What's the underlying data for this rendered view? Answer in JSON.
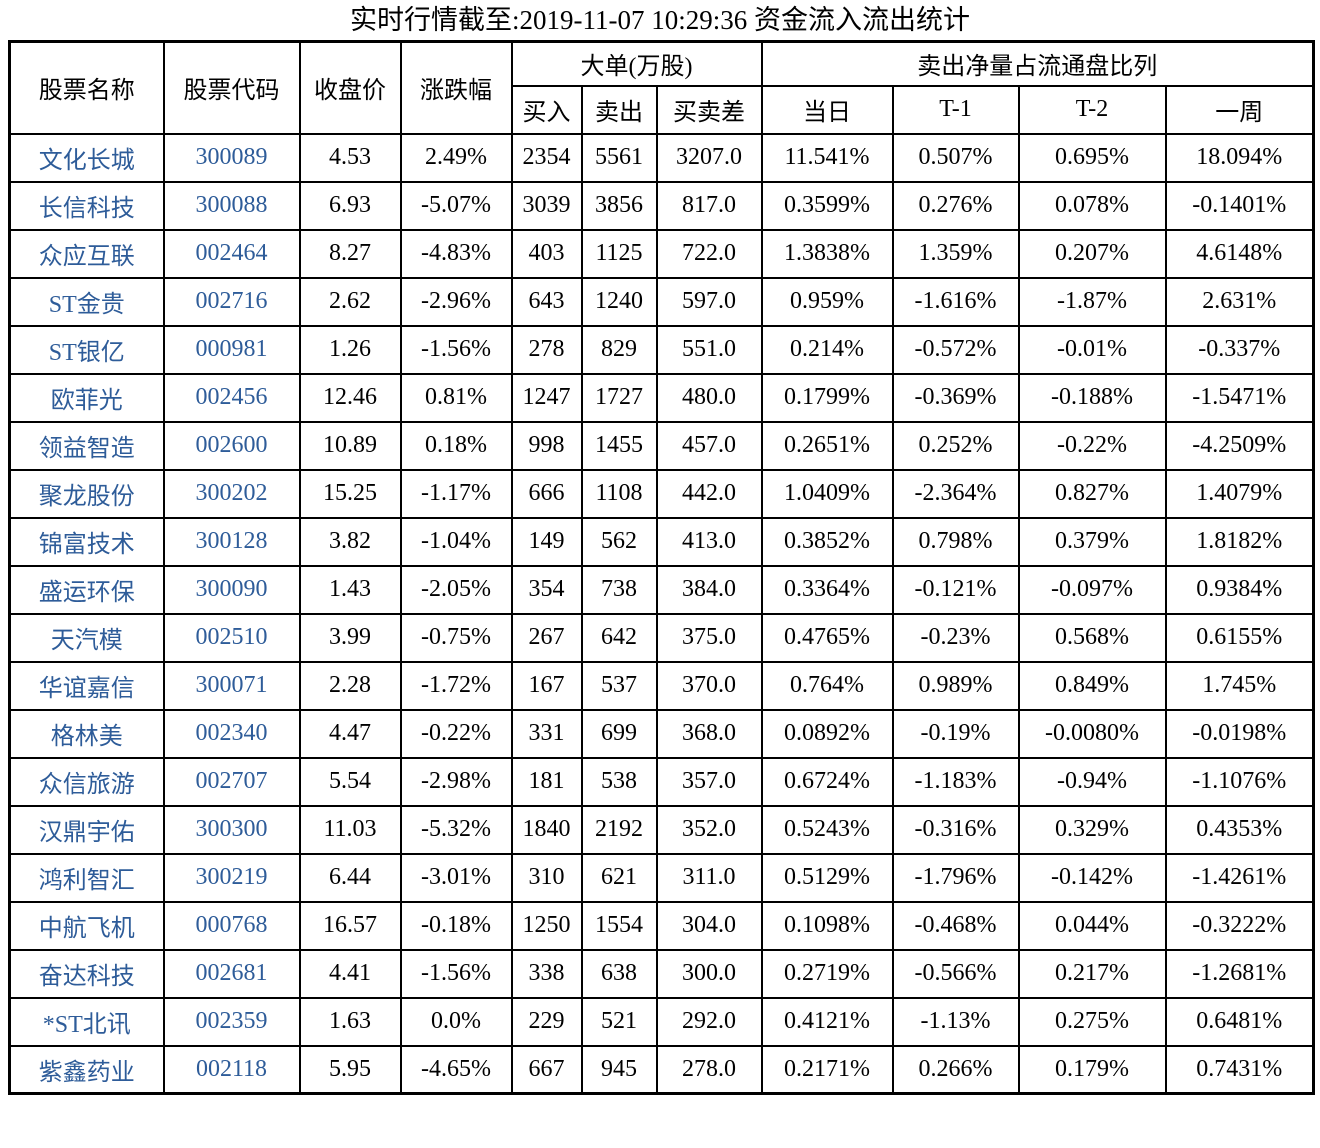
{
  "title": "实时行情截至:2019-11-07 10:29:36 资金流入流出统计",
  "colors": {
    "stock_text": "#2e5c99",
    "body_text": "#000000",
    "border": "#000000",
    "background": "#ffffff"
  },
  "table": {
    "header": {
      "stock_name": "股票名称",
      "stock_code": "股票代码",
      "close_price": "收盘价",
      "change_pct": "涨跌幅",
      "large_orders_group": "大单(万股)",
      "buy": "买入",
      "sell": "卖出",
      "buy_sell_diff": "买卖差",
      "net_sell_ratio_group": "卖出净量占流通盘比列",
      "day": "当日",
      "t1": "T-1",
      "t2": "T-2",
      "week": "一周"
    }
  },
  "chart_data": {
    "type": "table",
    "title": "实时行情截至:2019-11-07 10:29:36 资金流入流出统计",
    "column_groups": [
      {
        "label": "大单(万股)",
        "columns": [
          "买入",
          "卖出",
          "买卖差"
        ]
      },
      {
        "label": "卖出净量占流通盘比列",
        "columns": [
          "当日",
          "T-1",
          "T-2",
          "一周"
        ]
      }
    ],
    "columns": [
      "股票名称",
      "股票代码",
      "收盘价",
      "涨跌幅",
      "买入",
      "卖出",
      "买卖差",
      "当日",
      "T-1",
      "T-2",
      "一周"
    ],
    "rows": [
      [
        "文化长城",
        "300089",
        "4.53",
        "2.49%",
        "2354",
        "5561",
        "3207.0",
        "11.541%",
        "0.507%",
        "0.695%",
        "18.094%"
      ],
      [
        "长信科技",
        "300088",
        "6.93",
        "-5.07%",
        "3039",
        "3856",
        "817.0",
        "0.3599%",
        "0.276%",
        "0.078%",
        "-0.1401%"
      ],
      [
        "众应互联",
        "002464",
        "8.27",
        "-4.83%",
        "403",
        "1125",
        "722.0",
        "1.3838%",
        "1.359%",
        "0.207%",
        "4.6148%"
      ],
      [
        "ST金贵",
        "002716",
        "2.62",
        "-2.96%",
        "643",
        "1240",
        "597.0",
        "0.959%",
        "-1.616%",
        "-1.87%",
        "2.631%"
      ],
      [
        "ST银亿",
        "000981",
        "1.26",
        "-1.56%",
        "278",
        "829",
        "551.0",
        "0.214%",
        "-0.572%",
        "-0.01%",
        "-0.337%"
      ],
      [
        "欧菲光",
        "002456",
        "12.46",
        "0.81%",
        "1247",
        "1727",
        "480.0",
        "0.1799%",
        "-0.369%",
        "-0.188%",
        "-1.5471%"
      ],
      [
        "领益智造",
        "002600",
        "10.89",
        "0.18%",
        "998",
        "1455",
        "457.0",
        "0.2651%",
        "0.252%",
        "-0.22%",
        "-4.2509%"
      ],
      [
        "聚龙股份",
        "300202",
        "15.25",
        "-1.17%",
        "666",
        "1108",
        "442.0",
        "1.0409%",
        "-2.364%",
        "0.827%",
        "1.4079%"
      ],
      [
        "锦富技术",
        "300128",
        "3.82",
        "-1.04%",
        "149",
        "562",
        "413.0",
        "0.3852%",
        "0.798%",
        "0.379%",
        "1.8182%"
      ],
      [
        "盛运环保",
        "300090",
        "1.43",
        "-2.05%",
        "354",
        "738",
        "384.0",
        "0.3364%",
        "-0.121%",
        "-0.097%",
        "0.9384%"
      ],
      [
        "天汽模",
        "002510",
        "3.99",
        "-0.75%",
        "267",
        "642",
        "375.0",
        "0.4765%",
        "-0.23%",
        "0.568%",
        "0.6155%"
      ],
      [
        "华谊嘉信",
        "300071",
        "2.28",
        "-1.72%",
        "167",
        "537",
        "370.0",
        "0.764%",
        "0.989%",
        "0.849%",
        "1.745%"
      ],
      [
        "格林美",
        "002340",
        "4.47",
        "-0.22%",
        "331",
        "699",
        "368.0",
        "0.0892%",
        "-0.19%",
        "-0.0080%",
        "-0.0198%"
      ],
      [
        "众信旅游",
        "002707",
        "5.54",
        "-2.98%",
        "181",
        "538",
        "357.0",
        "0.6724%",
        "-1.183%",
        "-0.94%",
        "-1.1076%"
      ],
      [
        "汉鼎宇佑",
        "300300",
        "11.03",
        "-5.32%",
        "1840",
        "2192",
        "352.0",
        "0.5243%",
        "-0.316%",
        "0.329%",
        "0.4353%"
      ],
      [
        "鸿利智汇",
        "300219",
        "6.44",
        "-3.01%",
        "310",
        "621",
        "311.0",
        "0.5129%",
        "-1.796%",
        "-0.142%",
        "-1.4261%"
      ],
      [
        "中航飞机",
        "000768",
        "16.57",
        "-0.18%",
        "1250",
        "1554",
        "304.0",
        "0.1098%",
        "-0.468%",
        "0.044%",
        "-0.3222%"
      ],
      [
        "奋达科技",
        "002681",
        "4.41",
        "-1.56%",
        "338",
        "638",
        "300.0",
        "0.2719%",
        "-0.566%",
        "0.217%",
        "-1.2681%"
      ],
      [
        "*ST北讯",
        "002359",
        "1.63",
        "0.0%",
        "229",
        "521",
        "292.0",
        "0.4121%",
        "-1.13%",
        "0.275%",
        "0.6481%"
      ],
      [
        "紫鑫药业",
        "002118",
        "5.95",
        "-4.65%",
        "667",
        "945",
        "278.0",
        "0.2171%",
        "0.266%",
        "0.179%",
        "0.7431%"
      ]
    ]
  }
}
